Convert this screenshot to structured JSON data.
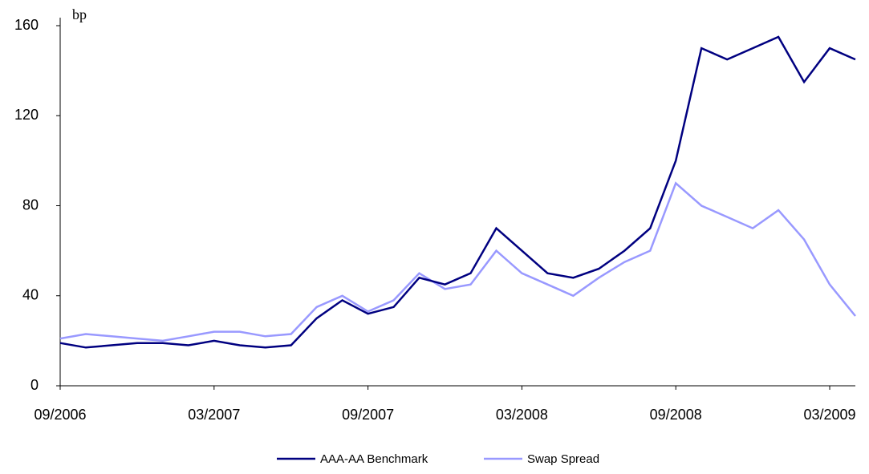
{
  "chart_data": {
    "type": "line",
    "y_unit_label": "bp",
    "x": [
      "09/2006",
      "10/2006",
      "11/2006",
      "12/2006",
      "01/2007",
      "02/2007",
      "03/2007",
      "04/2007",
      "05/2007",
      "06/2007",
      "07/2007",
      "08/2007",
      "09/2007",
      "10/2007",
      "11/2007",
      "12/2007",
      "01/2008",
      "02/2008",
      "03/2008",
      "04/2008",
      "05/2008",
      "06/2008",
      "07/2008",
      "08/2008",
      "09/2008",
      "10/2008",
      "11/2008",
      "12/2008",
      "01/2009",
      "02/2009",
      "03/2009",
      "04/2009"
    ],
    "series": [
      {
        "name": "AAA-AA Benchmark",
        "color": "#000080",
        "values": [
          19,
          17,
          18,
          19,
          19,
          18,
          20,
          18,
          17,
          18,
          30,
          38,
          32,
          35,
          48,
          45,
          50,
          70,
          60,
          50,
          48,
          52,
          60,
          70,
          100,
          150,
          145,
          150,
          155,
          135,
          150,
          145
        ]
      },
      {
        "name": "Swap Spread",
        "color": "#9999ff",
        "values": [
          21,
          23,
          22,
          21,
          20,
          22,
          24,
          24,
          22,
          23,
          35,
          40,
          33,
          38,
          50,
          43,
          45,
          60,
          50,
          45,
          40,
          48,
          55,
          60,
          90,
          80,
          75,
          70,
          78,
          65,
          45,
          31
        ]
      }
    ],
    "xlim": [
      "09/2006",
      "04/2009"
    ],
    "xticks": [
      "09/2006",
      "03/2007",
      "09/2007",
      "03/2008",
      "09/2008",
      "03/2009"
    ],
    "ylim": [
      0,
      160
    ],
    "yticks": [
      0,
      40,
      80,
      120,
      160
    ],
    "legend": "bottom"
  }
}
